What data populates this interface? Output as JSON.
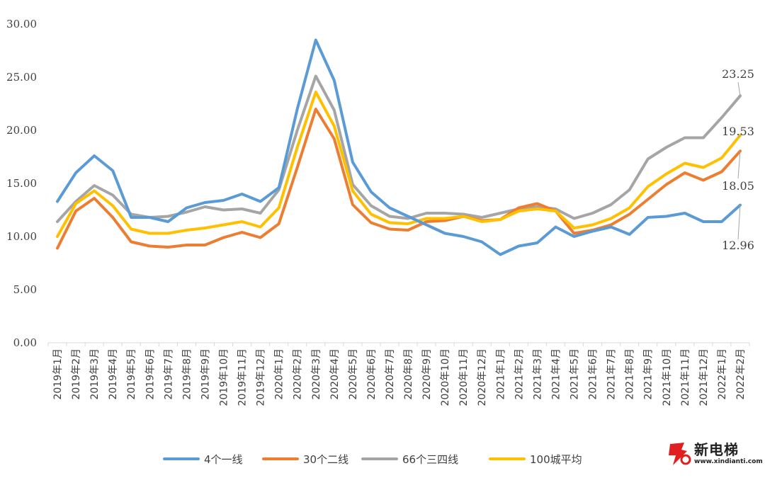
{
  "chart_data": {
    "type": "line",
    "title": "",
    "xlabel": "",
    "ylabel": "",
    "ylim": [
      0,
      30
    ],
    "yticks": [
      "0.00",
      "5.00",
      "10.00",
      "15.00",
      "20.00",
      "25.00",
      "30.00"
    ],
    "grid": false,
    "legend_position": "bottom",
    "categories": [
      "2019年1月",
      "2019年2月",
      "2019年3月",
      "2019年4月",
      "2019年5月",
      "2019年6月",
      "2019年7月",
      "2019年8月",
      "2019年9月",
      "2019年10月",
      "2019年11月",
      "2019年12月",
      "2020年1月",
      "2020年2月",
      "2020年3月",
      "2020年4月",
      "2020年5月",
      "2020年6月",
      "2020年7月",
      "2020年8月",
      "2020年9月",
      "2020年10月",
      "2020年11月",
      "2020年12月",
      "2021年1月",
      "2021年2月",
      "2021年3月",
      "2021年4月",
      "2021年5月",
      "2021年6月",
      "2021年7月",
      "2021年8月",
      "2021年9月",
      "2021年10月",
      "2021年11月",
      "2021年12月",
      "2022年1月",
      "2022年2月"
    ],
    "series": [
      {
        "name": "4个一线",
        "color": "#5b9bd5",
        "values": [
          13.3,
          16.0,
          17.6,
          16.2,
          11.8,
          11.8,
          11.4,
          12.7,
          13.2,
          13.4,
          14.0,
          13.3,
          14.6,
          22.0,
          28.5,
          24.7,
          17.0,
          14.2,
          12.7,
          11.9,
          11.1,
          10.3,
          10.0,
          9.5,
          8.3,
          9.1,
          9.4,
          10.9,
          10.0,
          10.5,
          10.9,
          10.2,
          11.8,
          11.9,
          12.2,
          11.4,
          11.4,
          12.96
        ]
      },
      {
        "name": "30个二线",
        "color": "#ed7d31",
        "values": [
          8.9,
          12.4,
          13.6,
          11.8,
          9.5,
          9.1,
          9.0,
          9.2,
          9.2,
          9.9,
          10.4,
          9.9,
          11.2,
          16.5,
          22.0,
          19.2,
          13.0,
          11.3,
          10.7,
          10.6,
          11.4,
          11.5,
          11.9,
          11.5,
          11.6,
          12.7,
          13.1,
          12.4,
          10.3,
          10.6,
          11.1,
          12.1,
          13.5,
          14.9,
          16.0,
          15.3,
          16.1,
          18.05
        ]
      },
      {
        "name": "66个三四线",
        "color": "#a5a5a5",
        "values": [
          11.4,
          13.3,
          14.8,
          13.9,
          12.1,
          11.8,
          11.9,
          12.3,
          12.8,
          12.5,
          12.6,
          12.2,
          14.4,
          20.0,
          25.1,
          21.9,
          14.9,
          12.9,
          11.9,
          11.7,
          12.2,
          12.2,
          12.1,
          11.8,
          12.2,
          12.6,
          12.8,
          12.6,
          11.7,
          12.2,
          13.0,
          14.4,
          17.3,
          18.4,
          19.3,
          19.3,
          21.2,
          23.25
        ]
      },
      {
        "name": "100城平均",
        "color": "#ffc000",
        "values": [
          10.0,
          13.1,
          14.3,
          12.9,
          10.7,
          10.3,
          10.3,
          10.6,
          10.8,
          11.1,
          11.4,
          10.9,
          12.7,
          18.4,
          23.6,
          20.4,
          14.3,
          12.1,
          11.3,
          11.2,
          11.7,
          11.7,
          11.9,
          11.4,
          11.6,
          12.4,
          12.6,
          12.4,
          10.8,
          11.1,
          11.7,
          12.7,
          14.7,
          15.9,
          16.9,
          16.5,
          17.4,
          19.53
        ]
      }
    ],
    "end_labels": [
      "12.96",
      "18.05",
      "23.25",
      "19.53"
    ]
  },
  "watermark": {
    "text": "新电梯",
    "url": "www.xindianti.com"
  }
}
